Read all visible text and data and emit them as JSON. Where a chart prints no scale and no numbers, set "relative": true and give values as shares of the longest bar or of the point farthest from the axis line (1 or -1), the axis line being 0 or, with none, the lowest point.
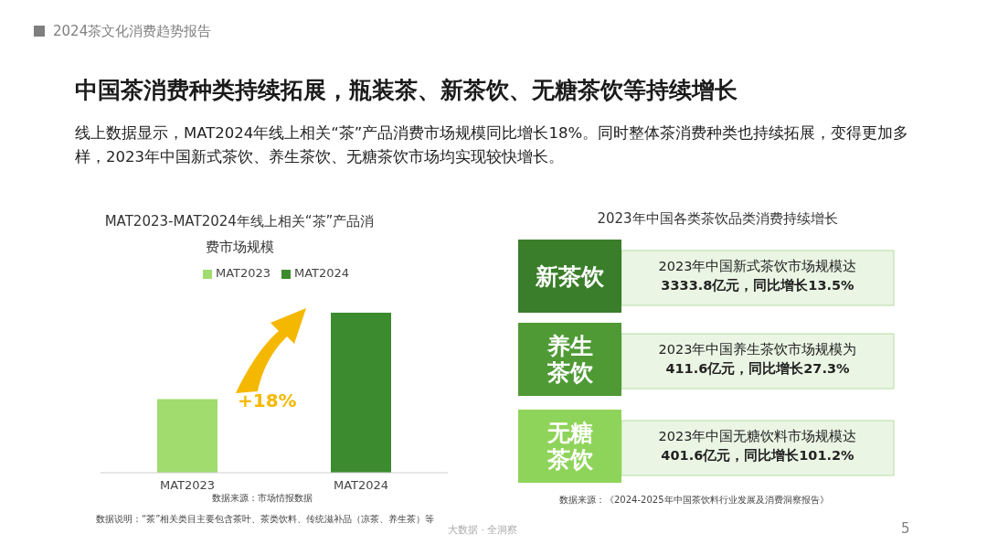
{
  "chart_data": [
    {
      "type": "other",
      "title": "中国茶消费种类持续拓展，瓶装茶、新茶饮、无糖茶饮等持续增长",
      "subtitle": "线上数据显示，MAT2024年线上相关“茶”产品消费市场规模同比增长18%。同时整体茶消费种类也持续拓展，变得更加多样，2023年中国新式茶饮、养生茶饮、无糖茶饮市场均实现较快增长。",
      "annotations": [
        "2024茶文化消费趋势报告",
        "5",
        "大数据 · 全洞察"
      ]
    },
    {
      "type": "bar",
      "relative": true,
      "title": "MAT2023-MAT2024年线上相关“茶”产品消费市场规模",
      "categories": [
        "MAT2023",
        "MAT2024"
      ],
      "legend": "top",
      "series": [
        {
          "name": "MAT2023",
          "color": "#a0dc6e",
          "values": [
            0.46,
            null
          ]
        },
        {
          "name": "MAT2024",
          "color": "#3c8c2f",
          "values": [
            null,
            1
          ]
        }
      ],
      "annotations": [
        "+18%",
        "数据来源：市场情报数据",
        "数据说明：“茶”相关类目主要包含茶叶、茶类饮料、传统滋补品（凉茶、养生茶）等"
      ]
    },
    {
      "type": "other",
      "title": "2023年中国各类茶饮品类消费持续增长",
      "annotations": [
        "新茶饮",
        "2023年中国新式茶饮市场规模达",
        "3333.8亿元，同比增长13.5%",
        "养生茶饮",
        "2023年中国养生茶饮市场规模为",
        "411.6亿元，同比增长27.3%",
        "无糖茶饮",
        "2023年中国无糖饮料市场规模达",
        "401.6亿元，同比增长101.2%",
        "数据来源：《2024-2025年中国茶饮料行业发展及消费洞察报告》"
      ]
    }
  ]
}
